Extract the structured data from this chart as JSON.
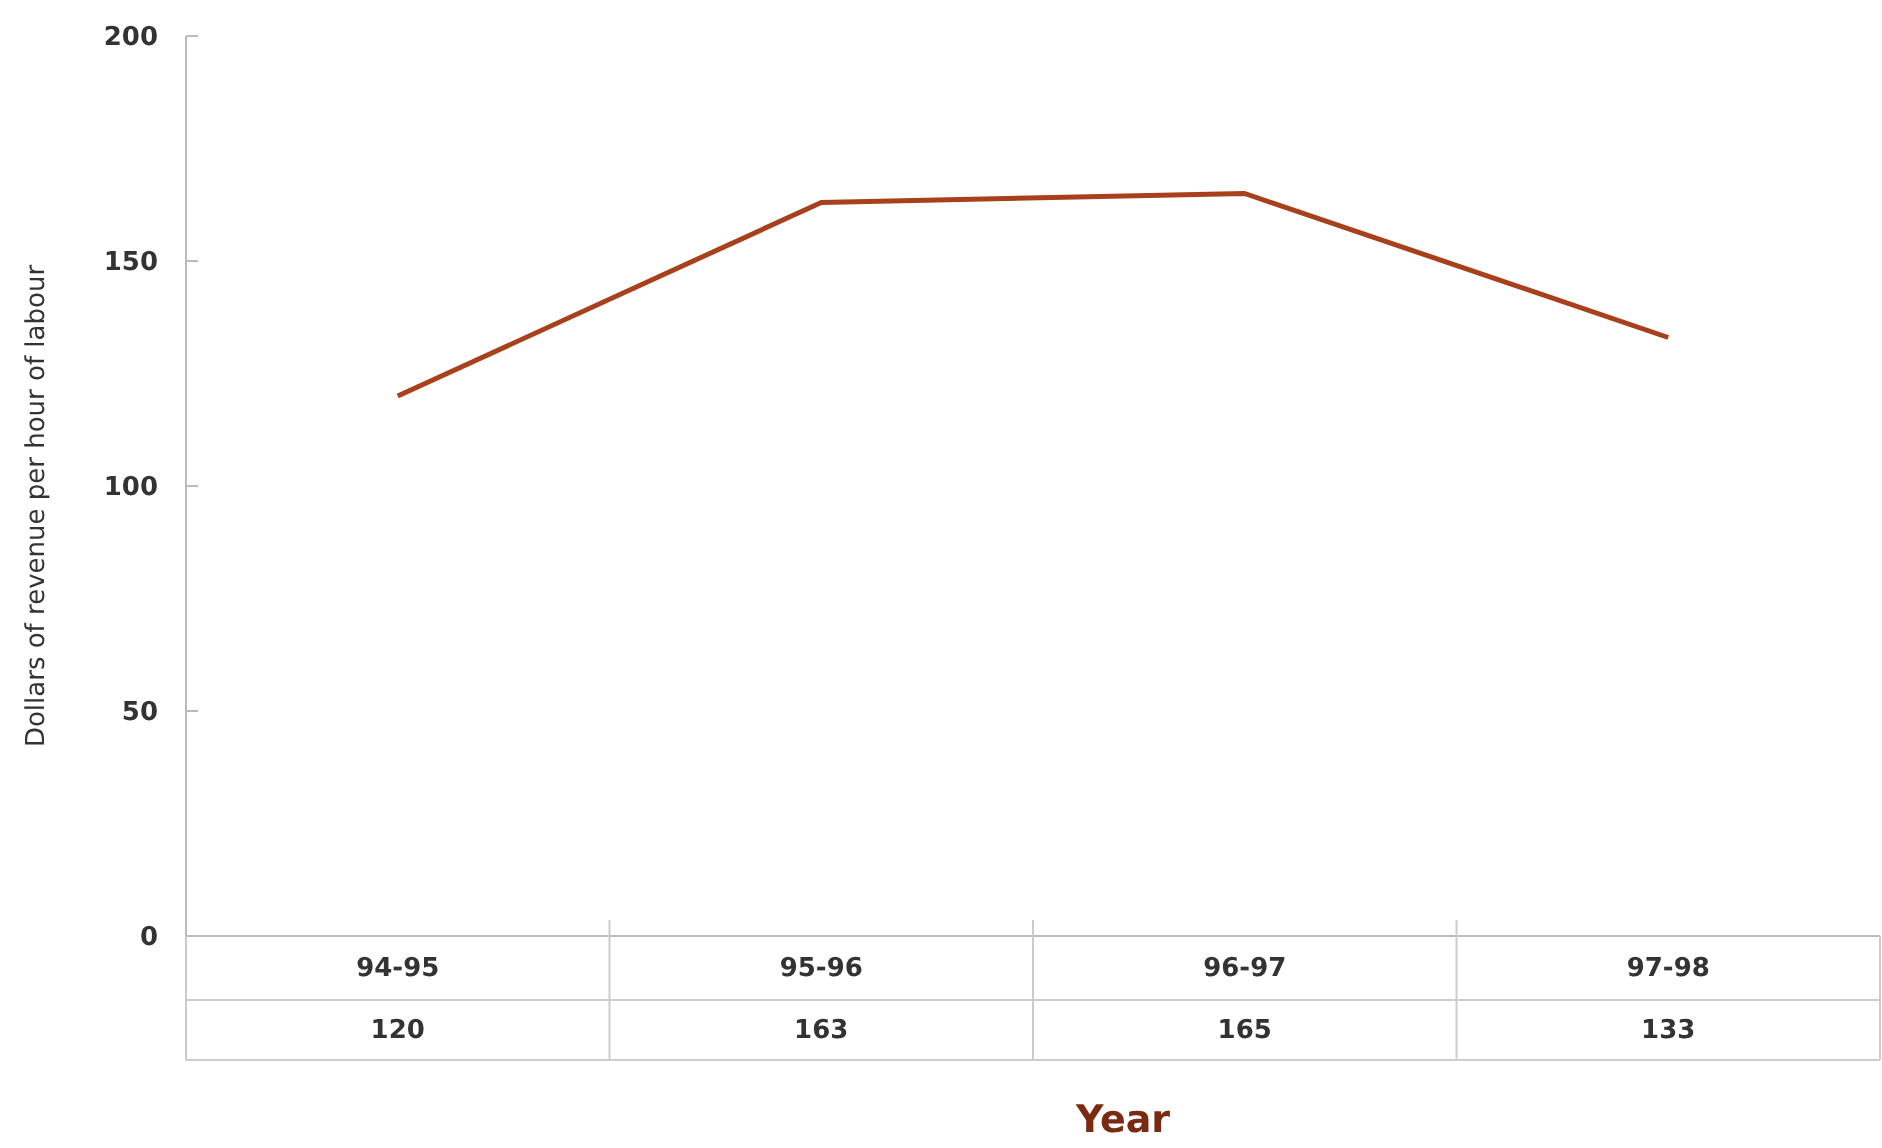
{
  "chart_data": {
    "type": "line",
    "xlabel": "Year",
    "ylabel": "Dollars of revenue per hour of labour",
    "categories": [
      "94-95",
      "95-96",
      "96-97",
      "97-98"
    ],
    "series": [
      {
        "color": "#a8401c",
        "values": [
          120,
          163,
          165,
          133
        ]
      }
    ],
    "ylim": [
      0,
      200
    ],
    "yticks": [
      0,
      50,
      100,
      150,
      200
    ],
    "grid": false,
    "marker": "none",
    "line_style": "solid",
    "data_labels": true
  }
}
